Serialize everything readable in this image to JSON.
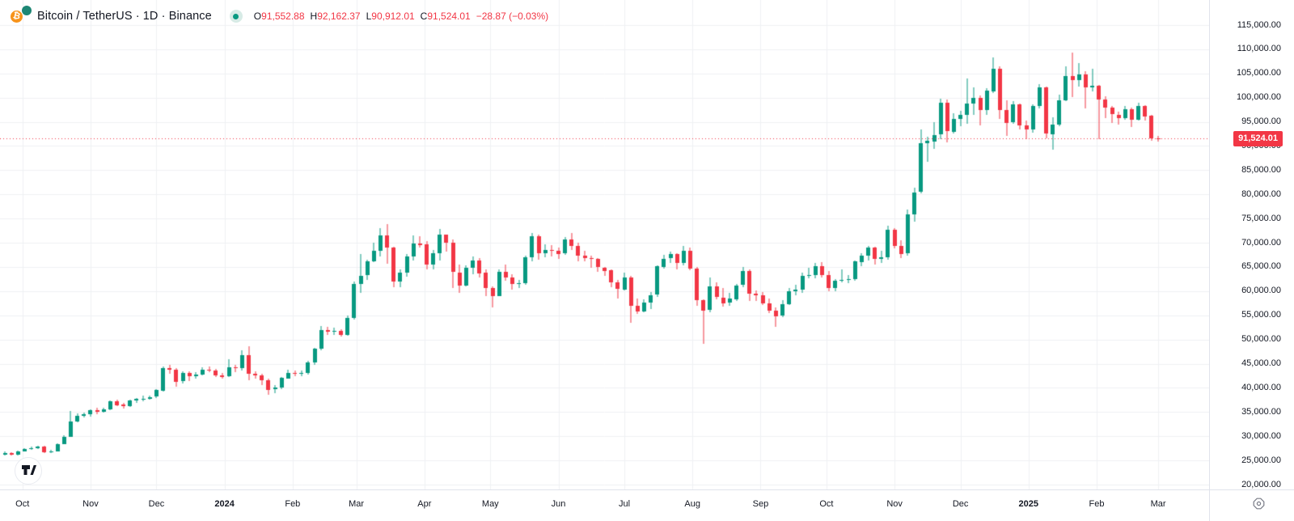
{
  "header": {
    "symbol_title": "Bitcoin / TetherUS · 1D · Binance",
    "logo": {
      "base_glyph": "₿",
      "base_color": "#f7931a",
      "quote_color": "#1d8674"
    },
    "status_dot_color": "#089981",
    "status_halo_color": "#d7ebe6",
    "ohlc": {
      "open_label": "O",
      "open": "91,552.88",
      "high_label": "H",
      "high": "92,162.37",
      "low_label": "L",
      "low": "90,912.01",
      "close_label": "C",
      "close": "91,524.01",
      "change": "−28.87 (−0.03%)"
    }
  },
  "colors": {
    "up": "#089981",
    "down": "#f23645",
    "grid": "#f0f1f4",
    "axis_text": "#131722",
    "last_price_line": "#f23645",
    "badge_bg": "#f23645",
    "badge_text": "#ffffff"
  },
  "price_axis": {
    "labels": [
      {
        "p": 115000,
        "t": "115,000.00"
      },
      {
        "p": 110000,
        "t": "110,000.00"
      },
      {
        "p": 105000,
        "t": "105,000.00"
      },
      {
        "p": 100000,
        "t": "100,000.00"
      },
      {
        "p": 95000,
        "t": "95,000.00"
      },
      {
        "p": 90000,
        "t": "90,000.00"
      },
      {
        "p": 85000,
        "t": "85,000.00"
      },
      {
        "p": 80000,
        "t": "80,000.00"
      },
      {
        "p": 75000,
        "t": "75,000.00"
      },
      {
        "p": 70000,
        "t": "70,000.00"
      },
      {
        "p": 65000,
        "t": "65,000.00"
      },
      {
        "p": 60000,
        "t": "60,000.00"
      },
      {
        "p": 55000,
        "t": "55,000.00"
      },
      {
        "p": 50000,
        "t": "50,000.00"
      },
      {
        "p": 45000,
        "t": "45,000.00"
      },
      {
        "p": 40000,
        "t": "40,000.00"
      },
      {
        "p": 35000,
        "t": "35,000.00"
      },
      {
        "p": 30000,
        "t": "30,000.00"
      },
      {
        "p": 25000,
        "t": "25,000.00"
      },
      {
        "p": 20000,
        "t": "20,000.00"
      }
    ]
  },
  "price_badge": {
    "value": 91524.01,
    "label": "91,524.01"
  },
  "time_axis": {
    "ticks": [
      {
        "label": "Oct",
        "day": 8
      },
      {
        "label": "Nov",
        "day": 39
      },
      {
        "label": "Dec",
        "day": 69
      },
      {
        "label": "2024",
        "day": 100,
        "year": true
      },
      {
        "label": "Feb",
        "day": 131
      },
      {
        "label": "Mar",
        "day": 160
      },
      {
        "label": "Apr",
        "day": 191
      },
      {
        "label": "May",
        "day": 221
      },
      {
        "label": "Jun",
        "day": 252
      },
      {
        "label": "Jul",
        "day": 282
      },
      {
        "label": "Aug",
        "day": 313
      },
      {
        "label": "Sep",
        "day": 344
      },
      {
        "label": "Oct",
        "day": 374
      },
      {
        "label": "Nov",
        "day": 405
      },
      {
        "label": "Dec",
        "day": 435
      },
      {
        "label": "2025",
        "day": 466,
        "year": true
      },
      {
        "label": "Feb",
        "day": 497
      },
      {
        "label": "Mar",
        "day": 525
      }
    ]
  },
  "chart_data": {
    "type": "candlestick",
    "title": "Bitcoin / TetherUS",
    "interval": "1D",
    "exchange": "Binance",
    "ylim": [
      18500,
      120000
    ],
    "price_grid_step": 5000,
    "days_per_candle": 3,
    "last_price": 91524.01,
    "legend": "O/H/L/C of last bar shown in header",
    "candles": [
      [
        26250,
        26850,
        26050,
        26550
      ],
      [
        26550,
        26750,
        26000,
        26200
      ],
      [
        26200,
        27050,
        26100,
        26900
      ],
      [
        26900,
        27550,
        26800,
        27400
      ],
      [
        27400,
        27800,
        27200,
        27600
      ],
      [
        27600,
        28100,
        27350,
        27900
      ],
      [
        27900,
        28000,
        26550,
        26800
      ],
      [
        26800,
        27150,
        26500,
        26900
      ],
      [
        26900,
        28550,
        26800,
        28400
      ],
      [
        28400,
        30150,
        28250,
        29900
      ],
      [
        29900,
        35150,
        29750,
        33100
      ],
      [
        33100,
        34750,
        32850,
        34200
      ],
      [
        34200,
        34850,
        33900,
        34500
      ],
      [
        34500,
        35600,
        34050,
        35400
      ],
      [
        35400,
        35950,
        34600,
        35100
      ],
      [
        35100,
        35900,
        34850,
        35600
      ],
      [
        35600,
        37450,
        35500,
        37300
      ],
      [
        37300,
        37550,
        36150,
        36500
      ],
      [
        36500,
        36850,
        35750,
        36200
      ],
      [
        36200,
        37550,
        36050,
        37400
      ],
      [
        37400,
        37900,
        36900,
        37700
      ],
      [
        37700,
        38400,
        37200,
        37800
      ],
      [
        37800,
        38450,
        37550,
        38100
      ],
      [
        38100,
        39700,
        37850,
        39500
      ],
      [
        39500,
        44500,
        39350,
        44100
      ],
      [
        44100,
        44750,
        42850,
        43800
      ],
      [
        43800,
        44050,
        40200,
        41300
      ],
      [
        41300,
        43400,
        40850,
        43000
      ],
      [
        43000,
        43450,
        41500,
        42300
      ],
      [
        42300,
        43250,
        41850,
        42700
      ],
      [
        42700,
        44250,
        42550,
        43700
      ],
      [
        43700,
        44400,
        43150,
        43600
      ],
      [
        43600,
        43950,
        42200,
        42600
      ],
      [
        42600,
        43100,
        41950,
        42300
      ],
      [
        42300,
        45900,
        42200,
        44200
      ],
      [
        44200,
        44800,
        43300,
        44000
      ],
      [
        44000,
        47750,
        43650,
        46700
      ],
      [
        46700,
        48600,
        41500,
        42900
      ],
      [
        42900,
        43400,
        41850,
        42600
      ],
      [
        42600,
        42900,
        40600,
        41600
      ],
      [
        41600,
        41900,
        38500,
        39600
      ],
      [
        39600,
        40550,
        38800,
        40000
      ],
      [
        40000,
        42250,
        39750,
        42000
      ],
      [
        42000,
        43800,
        41900,
        43100
      ],
      [
        43100,
        43550,
        42350,
        43000
      ],
      [
        43000,
        43500,
        42250,
        43100
      ],
      [
        43100,
        45600,
        42800,
        45300
      ],
      [
        45300,
        48250,
        44750,
        48100
      ],
      [
        48100,
        52850,
        47900,
        51900
      ],
      [
        51900,
        52550,
        50800,
        51600
      ],
      [
        51600,
        52400,
        50900,
        51800
      ],
      [
        51800,
        52100,
        50550,
        51000
      ],
      [
        51000,
        54900,
        50750,
        54500
      ],
      [
        54500,
        62050,
        54250,
        61500
      ],
      [
        61500,
        67650,
        59650,
        63200
      ],
      [
        63200,
        66550,
        62300,
        66100
      ],
      [
        66100,
        69950,
        65950,
        68300
      ],
      [
        68300,
        73050,
        67150,
        71500
      ],
      [
        71500,
        73800,
        65550,
        69000
      ],
      [
        69000,
        69150,
        60800,
        61900
      ],
      [
        61900,
        64550,
        60850,
        63800
      ],
      [
        63800,
        67650,
        63000,
        67200
      ],
      [
        67200,
        71550,
        66400,
        69900
      ],
      [
        69900,
        71300,
        68900,
        69600
      ],
      [
        69600,
        70300,
        64500,
        65500
      ],
      [
        65500,
        68550,
        64600,
        67800
      ],
      [
        67800,
        72800,
        66350,
        71600
      ],
      [
        71600,
        71750,
        68250,
        70000
      ],
      [
        70000,
        70700,
        60650,
        63900
      ],
      [
        63900,
        65450,
        59650,
        61200
      ],
      [
        61200,
        65350,
        61050,
        64900
      ],
      [
        64900,
        67150,
        63400,
        66400
      ],
      [
        66400,
        66850,
        62800,
        63800
      ],
      [
        63800,
        64550,
        59100,
        60600
      ],
      [
        60600,
        60900,
        56500,
        59000
      ],
      [
        59000,
        64450,
        58850,
        64000
      ],
      [
        64000,
        65550,
        62150,
        62900
      ],
      [
        62900,
        63450,
        60200,
        61500
      ],
      [
        61500,
        62350,
        60750,
        61600
      ],
      [
        61600,
        67300,
        61300,
        67000
      ],
      [
        67000,
        71950,
        66100,
        71400
      ],
      [
        71400,
        71600,
        66350,
        67900
      ],
      [
        67900,
        69650,
        66900,
        68500
      ],
      [
        68500,
        69550,
        67150,
        68400
      ],
      [
        68400,
        68950,
        66650,
        67800
      ],
      [
        67800,
        71100,
        67450,
        70600
      ],
      [
        70600,
        71950,
        68500,
        69300
      ],
      [
        69300,
        69950,
        66050,
        67300
      ],
      [
        67300,
        68350,
        66250,
        66800
      ],
      [
        66800,
        67300,
        64800,
        66600
      ],
      [
        66600,
        66900,
        64100,
        64900
      ],
      [
        64900,
        65000,
        63200,
        64300
      ],
      [
        64300,
        64500,
        60750,
        61800
      ],
      [
        61800,
        62350,
        58450,
        60400
      ],
      [
        60400,
        63850,
        60250,
        62900
      ],
      [
        62900,
        63200,
        53500,
        57000
      ],
      [
        57000,
        58450,
        55250,
        55900
      ],
      [
        55900,
        58250,
        55550,
        57700
      ],
      [
        57700,
        59850,
        56350,
        59200
      ],
      [
        59200,
        65350,
        58900,
        65100
      ],
      [
        65100,
        67450,
        64550,
        66700
      ],
      [
        66700,
        68150,
        65750,
        67600
      ],
      [
        67600,
        67850,
        64450,
        65800
      ],
      [
        65800,
        69400,
        65350,
        68300
      ],
      [
        68300,
        68950,
        64300,
        64600
      ],
      [
        64600,
        65050,
        57100,
        58100
      ],
      [
        58100,
        58350,
        49100,
        56000
      ],
      [
        56000,
        62750,
        55600,
        60900
      ],
      [
        60900,
        61850,
        58350,
        58700
      ],
      [
        58700,
        60650,
        56850,
        57600
      ],
      [
        57600,
        59650,
        57050,
        58400
      ],
      [
        58400,
        61450,
        57900,
        61200
      ],
      [
        61200,
        64950,
        60800,
        64100
      ],
      [
        64100,
        64450,
        57900,
        59500
      ],
      [
        59500,
        60200,
        58050,
        59100
      ],
      [
        59100,
        59800,
        57150,
        57500
      ],
      [
        57500,
        58500,
        55550,
        56000
      ],
      [
        56000,
        56550,
        52550,
        54900
      ],
      [
        54900,
        58100,
        54600,
        57300
      ],
      [
        57300,
        60650,
        57200,
        60000
      ],
      [
        60000,
        61350,
        59200,
        60300
      ],
      [
        60300,
        63850,
        59750,
        63200
      ],
      [
        63200,
        64750,
        62550,
        63300
      ],
      [
        63300,
        65800,
        62700,
        65200
      ],
      [
        65200,
        66050,
        62950,
        63300
      ],
      [
        63300,
        64100,
        59950,
        60600
      ],
      [
        60600,
        62500,
        60000,
        62100
      ],
      [
        62100,
        64450,
        61800,
        62300
      ],
      [
        62300,
        63350,
        61600,
        62400
      ],
      [
        62400,
        66350,
        62150,
        66100
      ],
      [
        66100,
        67900,
        65300,
        67400
      ],
      [
        67400,
        69400,
        66450,
        69000
      ],
      [
        69000,
        69250,
        65550,
        66700
      ],
      [
        66700,
        68300,
        65750,
        67000
      ],
      [
        67000,
        73600,
        66650,
        72700
      ],
      [
        72700,
        72950,
        68750,
        69400
      ],
      [
        69400,
        70550,
        66850,
        67800
      ],
      [
        67800,
        76900,
        67450,
        75900
      ],
      [
        75900,
        81450,
        74500,
        80400
      ],
      [
        80400,
        93400,
        80150,
        90500
      ],
      [
        90500,
        91850,
        86700,
        91000
      ],
      [
        91000,
        94900,
        89400,
        92300
      ],
      [
        92300,
        99800,
        91500,
        98900
      ],
      [
        98900,
        99600,
        90800,
        93000
      ],
      [
        93000,
        96700,
        92600,
        95600
      ],
      [
        95600,
        97350,
        94200,
        96400
      ],
      [
        96400,
        104000,
        94650,
        98700
      ],
      [
        98700,
        102150,
        96450,
        99900
      ],
      [
        99900,
        100450,
        94200,
        97400
      ],
      [
        97400,
        101900,
        96350,
        101400
      ],
      [
        101400,
        108300,
        100950,
        106000
      ],
      [
        106000,
        106500,
        95700,
        97500
      ],
      [
        97500,
        99500,
        92200,
        94900
      ],
      [
        94900,
        99300,
        94700,
        98600
      ],
      [
        98600,
        98850,
        93500,
        94200
      ],
      [
        94200,
        95200,
        91300,
        93400
      ],
      [
        93400,
        98650,
        92850,
        98200
      ],
      [
        98200,
        102800,
        97750,
        102100
      ],
      [
        102100,
        102350,
        91600,
        92500
      ],
      [
        92500,
        95850,
        89200,
        94500
      ],
      [
        94500,
        100650,
        94200,
        99500
      ],
      [
        99500,
        106400,
        99250,
        104500
      ],
      [
        104500,
        109300,
        100050,
        103700
      ],
      [
        103700,
        107200,
        102300,
        104800
      ],
      [
        104800,
        105450,
        97800,
        102100
      ],
      [
        102100,
        106000,
        101350,
        102400
      ],
      [
        102400,
        102550,
        91300,
        99600
      ],
      [
        99600,
        100200,
        95700,
        97900
      ],
      [
        97900,
        98350,
        94900,
        96500
      ],
      [
        96500,
        97050,
        94300,
        95800
      ],
      [
        95800,
        98200,
        95350,
        97600
      ],
      [
        97600,
        97900,
        93900,
        95500
      ],
      [
        95500,
        99000,
        95250,
        98300
      ],
      [
        98300,
        98500,
        95400,
        96200
      ],
      [
        96200,
        96400,
        91000,
        91600
      ],
      [
        91552,
        92162,
        90912,
        91524
      ]
    ]
  }
}
